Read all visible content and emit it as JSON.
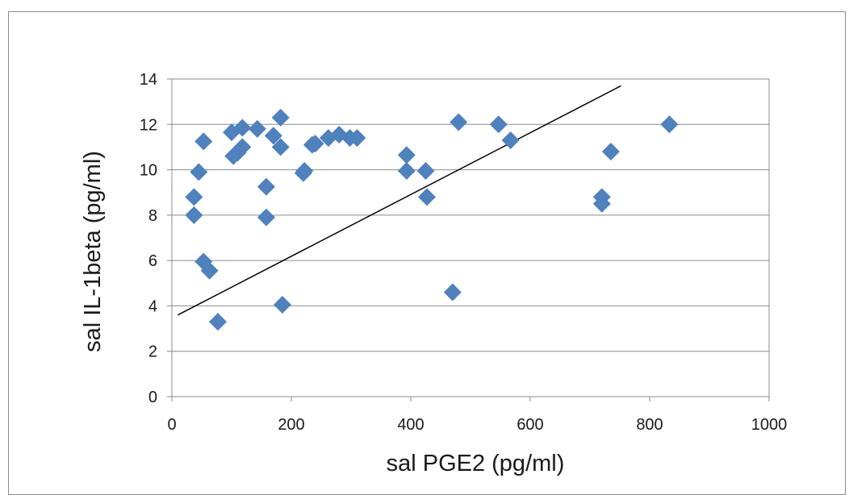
{
  "chart_data": {
    "type": "scatter",
    "title": "",
    "xlabel": "sal PGE2 (pg/ml)",
    "ylabel": "sal IL-1beta (pg/ml)",
    "xlim": [
      0,
      1000
    ],
    "ylim": [
      0,
      14
    ],
    "x_ticks": [
      "0",
      "200",
      "400",
      "600",
      "800",
      "1000"
    ],
    "y_ticks": [
      "0",
      "2",
      "4",
      "6",
      "8",
      "10",
      "12",
      "14"
    ],
    "grid": "horizontal",
    "legend": "none",
    "marker": "diamond",
    "marker_color": "#4f81bd",
    "trendline_color": "#000000",
    "trendline": {
      "x": [
        10,
        752
      ],
      "y": [
        3.6,
        13.7
      ]
    },
    "points": [
      {
        "x": 37,
        "y": 8.8
      },
      {
        "x": 37,
        "y": 8.0
      },
      {
        "x": 45,
        "y": 9.9
      },
      {
        "x": 53,
        "y": 11.25
      },
      {
        "x": 53,
        "y": 5.95
      },
      {
        "x": 63,
        "y": 5.55
      },
      {
        "x": 77,
        "y": 3.3
      },
      {
        "x": 100,
        "y": 11.65
      },
      {
        "x": 103,
        "y": 10.6
      },
      {
        "x": 110,
        "y": 10.75
      },
      {
        "x": 118,
        "y": 11.0
      },
      {
        "x": 118,
        "y": 11.85
      },
      {
        "x": 143,
        "y": 11.8
      },
      {
        "x": 158,
        "y": 9.25
      },
      {
        "x": 158,
        "y": 7.9
      },
      {
        "x": 170,
        "y": 11.5
      },
      {
        "x": 182,
        "y": 12.3
      },
      {
        "x": 182,
        "y": 11.0
      },
      {
        "x": 185,
        "y": 4.05
      },
      {
        "x": 220,
        "y": 9.85
      },
      {
        "x": 222,
        "y": 9.95
      },
      {
        "x": 235,
        "y": 11.1
      },
      {
        "x": 240,
        "y": 11.15
      },
      {
        "x": 262,
        "y": 11.4
      },
      {
        "x": 280,
        "y": 11.55
      },
      {
        "x": 298,
        "y": 11.4
      },
      {
        "x": 310,
        "y": 11.4
      },
      {
        "x": 393,
        "y": 10.65
      },
      {
        "x": 393,
        "y": 9.95
      },
      {
        "x": 425,
        "y": 9.95
      },
      {
        "x": 427,
        "y": 8.8
      },
      {
        "x": 470,
        "y": 4.6
      },
      {
        "x": 480,
        "y": 12.1
      },
      {
        "x": 547,
        "y": 12.0
      },
      {
        "x": 567,
        "y": 11.3
      },
      {
        "x": 720,
        "y": 8.8
      },
      {
        "x": 720,
        "y": 8.5
      },
      {
        "x": 735,
        "y": 10.8
      },
      {
        "x": 833,
        "y": 12.0
      }
    ]
  }
}
